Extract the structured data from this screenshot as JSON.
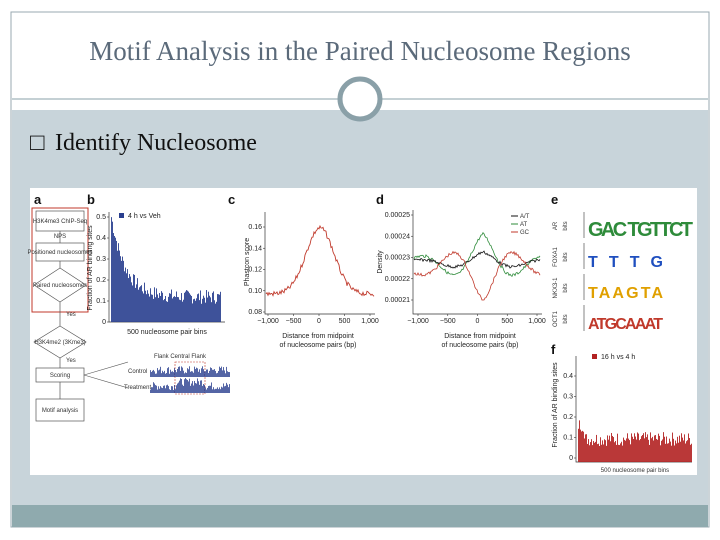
{
  "slide": {
    "title": "Motif Analysis in the Paired Nucleosome Regions",
    "bullet": "□",
    "heading": "Identify Nucleosome",
    "figure": {
      "panels": [
        "a",
        "b",
        "c",
        "d",
        "e",
        "f"
      ],
      "flowchart": [
        "H3K4me3 ChIP-Seq",
        "NPS",
        "Positioned nucleosomes",
        "Paired nucleosomes",
        "Yes",
        "H3K4me2 (3Kme3)",
        "Yes",
        "Scoring",
        "Motif analysis"
      ],
      "flank": {
        "header": "Flank Central Flank",
        "rows": [
          "Control",
          "Treatment"
        ]
      },
      "b": {
        "legend": "4 h vs Veh",
        "ylabel": "Fraction of AR binding sites",
        "xlabel": "500 nucleosome pair bins",
        "yticks": [
          "0.5",
          "0.4",
          "0.3",
          "0.2",
          "0.1",
          "0"
        ]
      },
      "c": {
        "ylabel": "Phastcon score",
        "yticks": [
          "0.16",
          "0.14",
          "0.12",
          "0.10",
          "0.08"
        ],
        "xticks": [
          "−1,000",
          "−500",
          "0",
          "500",
          "1,000"
        ],
        "xlabel": [
          "Distance from midpoint",
          "of nucleosome pairs (bp)"
        ]
      },
      "d": {
        "ylabel": "Density",
        "yticks": [
          "0.00025",
          "0.00024",
          "0.00023",
          "0.00022",
          "0.00021"
        ],
        "xticks": [
          "−1,000",
          "−500",
          "0",
          "500",
          "1,000"
        ],
        "xlabel": [
          "Distance from midpoint",
          "of nucleosome pairs (bp)"
        ],
        "legend": [
          "A/T",
          "AT",
          "GC"
        ]
      },
      "e": {
        "motifs": [
          "AR",
          "FOXA1",
          "NKX3-1",
          "OCT1"
        ],
        "units": "bits",
        "logos": [
          "GAC  TGTTCT",
          "TTTG",
          "TAAGTA",
          "ATGCAAAT"
        ]
      },
      "f": {
        "legend": "16 h vs 4 h",
        "ylabel": "Fraction of AR binding sites",
        "xlabel": "500 nucleosome pair bins",
        "yticks": [
          "0.4",
          "0.3",
          "0.2",
          "0.1",
          "0"
        ]
      }
    }
  }
}
